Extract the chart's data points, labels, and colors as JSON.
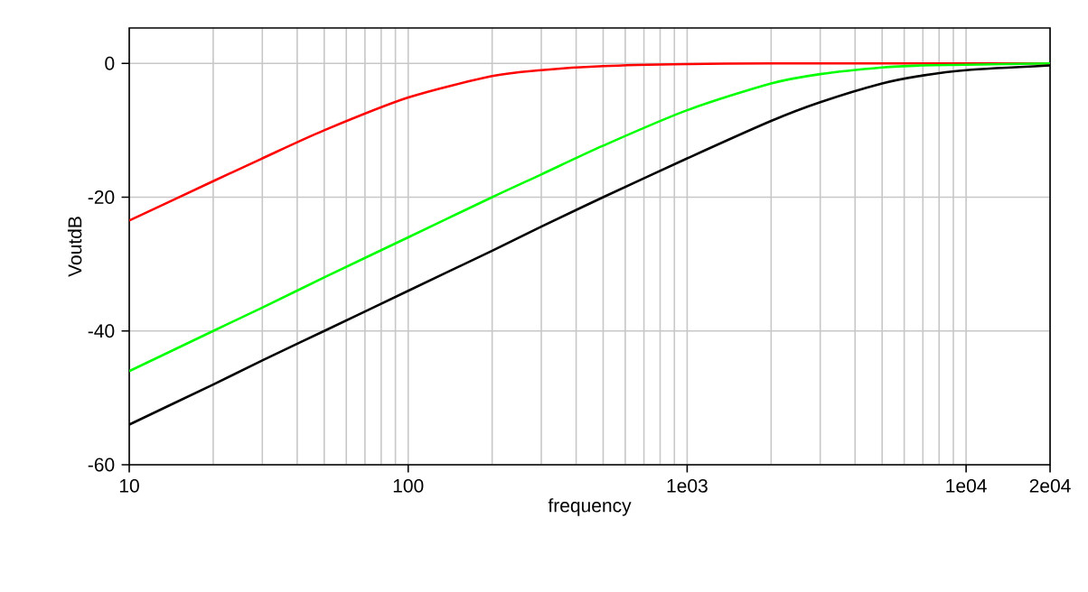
{
  "chart_data": {
    "type": "line",
    "xlabel": "frequency",
    "ylabel": "VoutdB",
    "log": "x",
    "grid": true,
    "marker": "none",
    "line_style": "solid",
    "x": [
      10,
      20,
      30,
      50,
      100,
      200,
      300,
      500,
      1000,
      2000,
      3000,
      5000,
      7000,
      10000,
      20000
    ],
    "series": [
      {
        "color": "#ff0000",
        "values": [
          -23.5,
          -17.6,
          -14.2,
          -10.0,
          -5.1,
          -1.9,
          -1.0,
          -0.4,
          -0.1,
          0,
          0,
          0,
          0,
          0,
          0
        ]
      },
      {
        "color": "#00ff00",
        "values": [
          -46,
          -40,
          -36.5,
          -32,
          -26,
          -20,
          -16.6,
          -12.3,
          -7.0,
          -3.0,
          -1.6,
          -0.6,
          -0.3,
          -0.2,
          0
        ]
      },
      {
        "color": "#000000",
        "values": [
          -54,
          -48,
          -44.4,
          -40,
          -34,
          -28,
          -24.4,
          -20,
          -14.2,
          -8.6,
          -5.8,
          -3.0,
          -1.8,
          -1.0,
          -0.3
        ]
      }
    ],
    "xlim": [
      10,
      20000
    ],
    "ylim": [
      -60,
      5.3
    ],
    "xticks": [
      10,
      100,
      {
        "value": 1000,
        "label": "1e03"
      },
      {
        "value": 10000,
        "label": "1e04"
      },
      {
        "value": 20000,
        "label": "2e04"
      }
    ],
    "yticks": [
      -60,
      -40,
      -20,
      0
    ]
  }
}
